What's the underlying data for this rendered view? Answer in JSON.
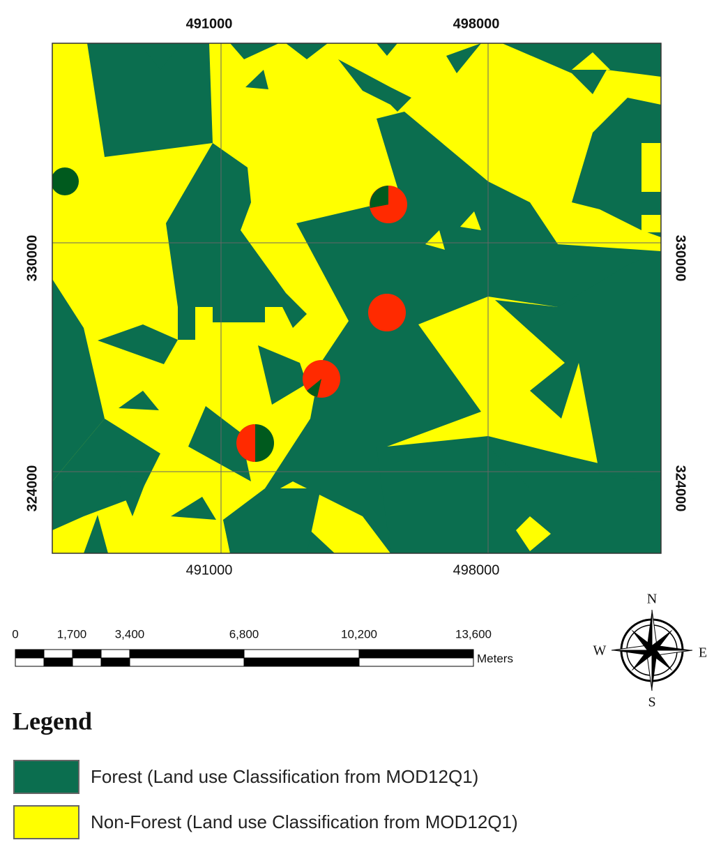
{
  "map": {
    "grid": {
      "x_labels": [
        "491000",
        "498000"
      ],
      "y_labels": [
        "330000",
        "324000"
      ]
    }
  },
  "scale_bar": {
    "labels": [
      "0",
      "1,700",
      "3,400",
      "6,800",
      "10,200",
      "13,600"
    ],
    "unit": "Meters"
  },
  "compass": {
    "north": "N",
    "south": "S",
    "west": "W",
    "east": "E"
  },
  "legend": {
    "title": "Legend",
    "items": [
      "Forest (Land use Classification from MOD12Q1)",
      "Non-Forest (Land use Classification from MOD12Q1)"
    ]
  }
}
